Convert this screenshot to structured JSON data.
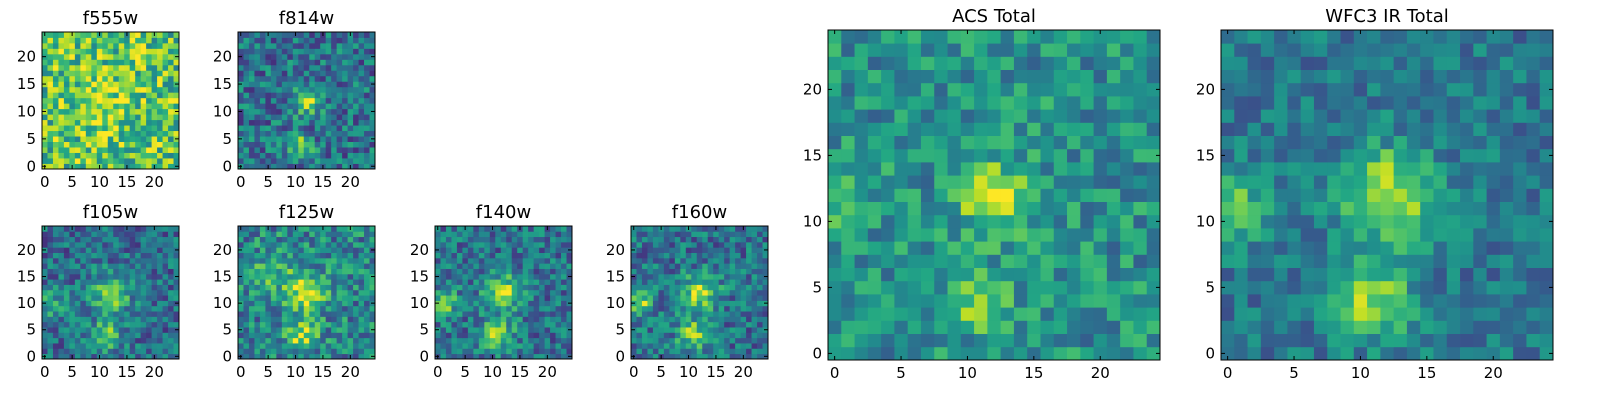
{
  "chart_data": {
    "type": "heatmap",
    "colormap": "viridis",
    "grid_size": 25,
    "panels": [
      {
        "title": "f555w",
        "x_ticks": [
          "0",
          "5",
          "10",
          "15",
          "20"
        ],
        "y_ticks": [
          "0",
          "5",
          "10",
          "15",
          "20"
        ],
        "base": 0.72,
        "noise": 0.3,
        "peaks": [
          {
            "cx": 11,
            "cy": 12,
            "amp": 0.15,
            "sigma": 4
          }
        ]
      },
      {
        "title": "f814w",
        "x_ticks": [
          "0",
          "5",
          "10",
          "15",
          "20"
        ],
        "y_ticks": [
          "0",
          "5",
          "10",
          "15",
          "20"
        ],
        "base": 0.38,
        "noise": 0.24,
        "peaks": [
          {
            "cx": 12,
            "cy": 12,
            "amp": 0.55,
            "sigma": 1.7
          },
          {
            "cx": 11,
            "cy": 4,
            "amp": 0.45,
            "sigma": 1.4
          }
        ]
      },
      {
        "title": "f105w",
        "x_ticks": [
          "0",
          "5",
          "10",
          "15",
          "20"
        ],
        "y_ticks": [
          "0",
          "5",
          "10",
          "15",
          "20"
        ],
        "base": 0.36,
        "noise": 0.22,
        "peaks": [
          {
            "cx": 12,
            "cy": 12,
            "amp": 0.45,
            "sigma": 2.5
          },
          {
            "cx": 11,
            "cy": 4,
            "amp": 0.4,
            "sigma": 2
          },
          {
            "cx": 1,
            "cy": 10,
            "amp": 0.25,
            "sigma": 2
          }
        ]
      },
      {
        "title": "f125w",
        "x_ticks": [
          "0",
          "5",
          "10",
          "15",
          "20"
        ],
        "y_ticks": [
          "0",
          "5",
          "10",
          "15",
          "20"
        ],
        "base": 0.45,
        "noise": 0.25,
        "peaks": [
          {
            "cx": 12,
            "cy": 12,
            "amp": 0.5,
            "sigma": 2.5
          },
          {
            "cx": 11,
            "cy": 4,
            "amp": 0.4,
            "sigma": 2
          },
          {
            "cx": 6,
            "cy": 16,
            "amp": 0.2,
            "sigma": 3
          }
        ]
      },
      {
        "title": "f140w",
        "x_ticks": [
          "0",
          "5",
          "10",
          "15",
          "20"
        ],
        "y_ticks": [
          "0",
          "5",
          "10",
          "15",
          "20"
        ],
        "base": 0.38,
        "noise": 0.22,
        "peaks": [
          {
            "cx": 12,
            "cy": 12,
            "amp": 0.5,
            "sigma": 2.3
          },
          {
            "cx": 11,
            "cy": 4,
            "amp": 0.45,
            "sigma": 2
          },
          {
            "cx": 1,
            "cy": 10,
            "amp": 0.4,
            "sigma": 1.8
          }
        ]
      },
      {
        "title": "f160w",
        "x_ticks": [
          "0",
          "5",
          "10",
          "15",
          "20"
        ],
        "y_ticks": [
          "0",
          "5",
          "10",
          "15",
          "20"
        ],
        "base": 0.38,
        "noise": 0.22,
        "peaks": [
          {
            "cx": 12,
            "cy": 12,
            "amp": 0.5,
            "sigma": 2.3
          },
          {
            "cx": 11,
            "cy": 4,
            "amp": 0.45,
            "sigma": 2
          },
          {
            "cx": 1,
            "cy": 10,
            "amp": 0.45,
            "sigma": 1.8
          }
        ]
      },
      {
        "title": "ACS Total",
        "x_ticks": [
          "0",
          "5",
          "10",
          "15",
          "20"
        ],
        "y_ticks": [
          "0",
          "5",
          "10",
          "15",
          "20"
        ],
        "base": 0.5,
        "noise": 0.2,
        "peaks": [
          {
            "cx": 12,
            "cy": 12,
            "amp": 0.45,
            "sigma": 1.8
          },
          {
            "cx": 11,
            "cy": 4,
            "amp": 0.4,
            "sigma": 1.5
          },
          {
            "cx": 0,
            "cy": 12,
            "amp": 0.2,
            "sigma": 2
          }
        ]
      },
      {
        "title": "WFC3 IR Total",
        "x_ticks": [
          "0",
          "5",
          "10",
          "15",
          "20"
        ],
        "y_ticks": [
          "0",
          "5",
          "10",
          "15",
          "20"
        ],
        "base": 0.4,
        "noise": 0.16,
        "peaks": [
          {
            "cx": 12,
            "cy": 12,
            "amp": 0.5,
            "sigma": 2.5
          },
          {
            "cx": 11,
            "cy": 4,
            "amp": 0.45,
            "sigma": 2
          },
          {
            "cx": 0,
            "cy": 11,
            "amp": 0.4,
            "sigma": 2
          }
        ]
      }
    ]
  }
}
